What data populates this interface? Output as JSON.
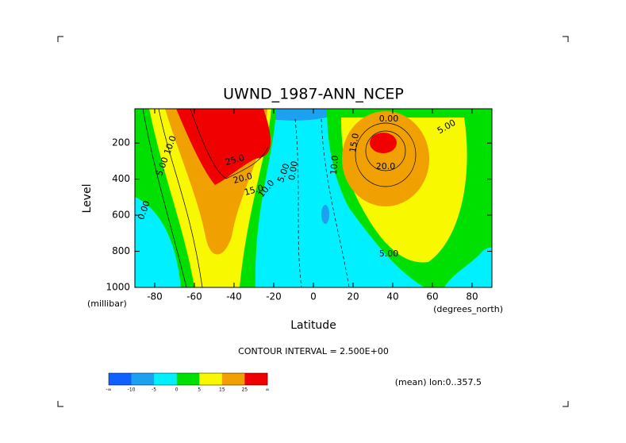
{
  "chart_data": {
    "type": "contour",
    "title": "UWND_1987-ANN_NCEP",
    "xlabel": "Latitude",
    "ylabel": "Level",
    "xunits": "(degrees_north)",
    "yunits": "(millibar)",
    "xlim": [
      -90,
      90
    ],
    "xticks": [
      -80,
      -60,
      -40,
      -20,
      0,
      20,
      40,
      60,
      80
    ],
    "ylim": [
      1000,
      10
    ],
    "yticks": [
      200,
      400,
      600,
      800,
      1000
    ],
    "contour_labels": [
      "10.0",
      "5.00",
      "0.00",
      "25.0",
      "20.0",
      "15.0",
      "10.0",
      "5.00",
      "0.00",
      "10.0",
      "15.0",
      "20.0",
      "0.00",
      "5.00",
      "5.00"
    ],
    "annotation": "CONTOUR INTERVAL = 2.500E+00",
    "note": "(mean) lon:0..357.5",
    "colorbar": {
      "labels": [
        "-∞",
        -10,
        -5,
        0,
        5,
        15,
        25,
        "∞"
      ],
      "colors": [
        "#1060ff",
        "#1ca0f0",
        "#00f0ff",
        "#00e000",
        "#f8f800",
        "#f0a000",
        "#f00000"
      ]
    }
  }
}
